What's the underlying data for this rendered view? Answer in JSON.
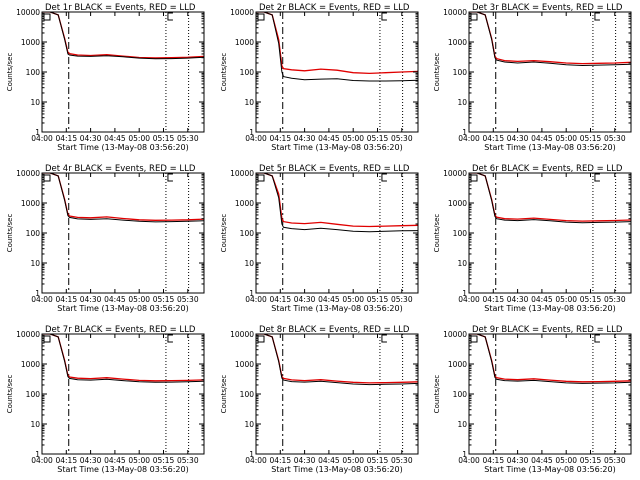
{
  "figure": {
    "axis": {
      "x_tick_labels": [
        "04:00",
        "04:15",
        "04:30",
        "04:45",
        "05:00",
        "05:15",
        "05:30"
      ],
      "x_tick_minutes": [
        0,
        15,
        30,
        45,
        60,
        75,
        90
      ],
      "xlim_minutes": [
        0,
        100
      ],
      "y_tick_labels": [
        "1",
        "10",
        "100",
        "1000",
        "10000"
      ],
      "y_tick_values": [
        1,
        10,
        100,
        1000,
        10000
      ],
      "ylim": [
        1,
        10000
      ],
      "yscale": "log",
      "ylabel": "Counts/sec",
      "xlabel": "Start Time (13-May-08 03:56:20)"
    },
    "colors": {
      "black": "#000000",
      "red": "#e00000"
    },
    "markers": {
      "vline_minutes": [
        16.5,
        76.5,
        90.5
      ]
    },
    "corner_icons": {
      "left": "square-box-icon",
      "right": "bracket-icon"
    }
  },
  "chart_data": [
    {
      "type": "line",
      "title": "Det 1r BLACK = Events, RED = LLD",
      "x": [
        0,
        5,
        10,
        14,
        16,
        17,
        22,
        30,
        40,
        50,
        60,
        70,
        80,
        90,
        100
      ],
      "series": [
        {
          "values": [
            10000,
            10000,
            8000,
            1200,
            400,
            370,
            340,
            330,
            350,
            320,
            290,
            275,
            280,
            290,
            310
          ]
        },
        {
          "values": [
            10000,
            10000,
            8000,
            1300,
            450,
            410,
            370,
            355,
            380,
            340,
            305,
            295,
            300,
            310,
            330
          ]
        }
      ]
    },
    {
      "type": "line",
      "title": "Det 2r BLACK = Events, RED = LLD",
      "x": [
        0,
        5,
        10,
        14,
        16,
        17,
        22,
        30,
        40,
        50,
        60,
        70,
        80,
        90,
        100
      ],
      "series": [
        {
          "values": [
            10000,
            10000,
            8000,
            900,
            100,
            70,
            62,
            55,
            58,
            60,
            52,
            50,
            50,
            51,
            53
          ]
        },
        {
          "values": [
            10000,
            10000,
            8000,
            1200,
            160,
            130,
            118,
            110,
            125,
            115,
            95,
            90,
            95,
            100,
            105
          ]
        }
      ]
    },
    {
      "type": "line",
      "title": "Det 3r BLACK = Events, RED = LLD",
      "x": [
        0,
        5,
        10,
        14,
        16,
        17,
        22,
        30,
        40,
        50,
        60,
        70,
        80,
        90,
        100
      ],
      "series": [
        {
          "values": [
            10000,
            10000,
            8000,
            1200,
            300,
            250,
            215,
            200,
            215,
            195,
            175,
            165,
            170,
            175,
            180
          ]
        },
        {
          "values": [
            10000,
            10000,
            8000,
            1300,
            340,
            280,
            240,
            225,
            240,
            220,
            200,
            190,
            195,
            200,
            210
          ]
        }
      ]
    },
    {
      "type": "line",
      "title": "Det 4r BLACK = Events, RED = LLD",
      "x": [
        0,
        5,
        10,
        14,
        16,
        17,
        22,
        30,
        40,
        50,
        60,
        70,
        80,
        90,
        100
      ],
      "series": [
        {
          "values": [
            10000,
            10000,
            8000,
            1200,
            380,
            330,
            295,
            285,
            300,
            270,
            245,
            235,
            240,
            245,
            255
          ]
        },
        {
          "values": [
            10000,
            10000,
            8000,
            1300,
            420,
            370,
            330,
            320,
            345,
            305,
            275,
            265,
            270,
            275,
            290
          ]
        }
      ]
    },
    {
      "type": "line",
      "title": "Det 5r BLACK = Events, RED = LLD",
      "x": [
        0,
        5,
        10,
        14,
        16,
        17,
        22,
        30,
        40,
        50,
        60,
        70,
        80,
        90,
        100
      ],
      "series": [
        {
          "values": [
            10000,
            10000,
            8000,
            1500,
            200,
            155,
            140,
            130,
            145,
            130,
            115,
            110,
            115,
            118,
            120
          ]
        },
        {
          "values": [
            10000,
            10000,
            8000,
            2000,
            300,
            240,
            215,
            205,
            225,
            195,
            170,
            165,
            170,
            175,
            180
          ]
        }
      ]
    },
    {
      "type": "line",
      "title": "Det 6r BLACK = Events, RED = LLD",
      "x": [
        0,
        5,
        10,
        14,
        16,
        17,
        22,
        30,
        40,
        50,
        60,
        70,
        80,
        90,
        100
      ],
      "series": [
        {
          "values": [
            10000,
            10000,
            8000,
            1200,
            360,
            300,
            270,
            260,
            280,
            255,
            230,
            220,
            225,
            230,
            240
          ]
        },
        {
          "values": [
            10000,
            10000,
            8000,
            1300,
            400,
            340,
            300,
            290,
            315,
            285,
            260,
            250,
            255,
            262,
            272
          ]
        }
      ]
    },
    {
      "type": "line",
      "title": "Det 7r BLACK = Events, RED = LLD",
      "x": [
        0,
        5,
        10,
        14,
        16,
        17,
        22,
        30,
        40,
        50,
        60,
        70,
        80,
        90,
        100
      ],
      "series": [
        {
          "values": [
            10000,
            10000,
            8000,
            1200,
            380,
            330,
            300,
            290,
            310,
            280,
            255,
            245,
            250,
            255,
            265
          ]
        },
        {
          "values": [
            10000,
            10000,
            8000,
            1300,
            420,
            370,
            335,
            325,
            350,
            315,
            285,
            275,
            280,
            285,
            295
          ]
        }
      ]
    },
    {
      "type": "line",
      "title": "Det 8r BLACK = Events, RED = LLD",
      "x": [
        0,
        5,
        10,
        14,
        16,
        17,
        22,
        30,
        40,
        50,
        60,
        70,
        80,
        90,
        100
      ],
      "series": [
        {
          "values": [
            10000,
            10000,
            8000,
            1200,
            340,
            290,
            260,
            250,
            265,
            240,
            215,
            205,
            210,
            215,
            225
          ]
        },
        {
          "values": [
            10000,
            10000,
            8000,
            1300,
            380,
            330,
            295,
            280,
            300,
            270,
            245,
            235,
            240,
            245,
            255
          ]
        }
      ]
    },
    {
      "type": "line",
      "title": "Det 9r BLACK = Events, RED = LLD",
      "x": [
        0,
        5,
        10,
        14,
        16,
        17,
        22,
        30,
        40,
        50,
        60,
        70,
        80,
        90,
        100
      ],
      "series": [
        {
          "values": [
            10000,
            10000,
            8000,
            1200,
            360,
            310,
            280,
            270,
            285,
            260,
            235,
            225,
            230,
            235,
            245
          ]
        },
        {
          "values": [
            10000,
            10000,
            8000,
            1300,
            400,
            350,
            315,
            300,
            320,
            290,
            265,
            255,
            260,
            265,
            275
          ]
        }
      ]
    }
  ]
}
